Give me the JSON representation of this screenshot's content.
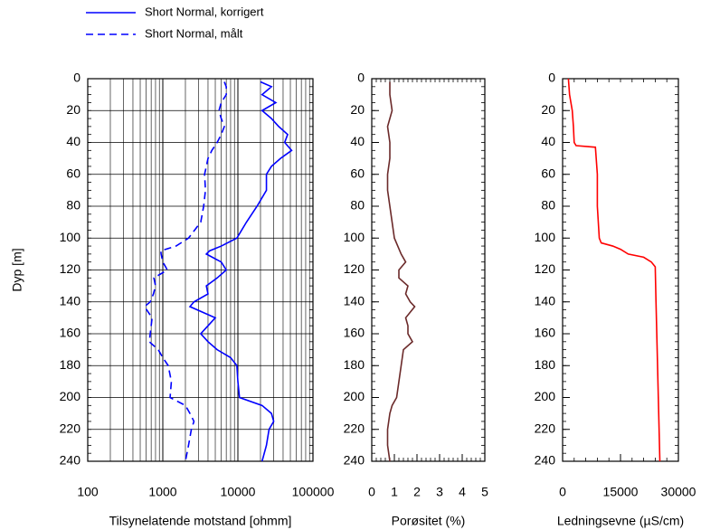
{
  "chart_data": [
    {
      "type": "line",
      "log_x": true,
      "grid": true,
      "legend": "top-left",
      "x_label": "Tilsynelatende motstand [ohmm]",
      "y_label": "Dyp [m]",
      "xlim": [
        100,
        100000
      ],
      "xticks": [
        100,
        1000,
        10000,
        100000
      ],
      "ylim": [
        0,
        240
      ],
      "yticks": [
        0,
        20,
        40,
        60,
        80,
        100,
        120,
        140,
        160,
        180,
        200,
        220,
        240
      ],
      "y": [
        2,
        5,
        10,
        15,
        20,
        25,
        30,
        35,
        40,
        45,
        50,
        55,
        60,
        70,
        80,
        90,
        100,
        105,
        108,
        110,
        115,
        120,
        125,
        130,
        135,
        140,
        143,
        150,
        155,
        160,
        165,
        170,
        175,
        180,
        190,
        200,
        205,
        210,
        215,
        220,
        230,
        240
      ],
      "series": [
        {
          "name": "Short Normal, korrigert",
          "color": "#0000ff",
          "dashed": false,
          "values": [
            20000,
            28000,
            21000,
            32000,
            21000,
            28000,
            35000,
            46000,
            42000,
            52000,
            37000,
            28000,
            24000,
            24000,
            18000,
            13000,
            9700,
            6000,
            4200,
            3800,
            6000,
            7000,
            5300,
            3800,
            4000,
            2600,
            2300,
            5000,
            4000,
            3200,
            4000,
            5300,
            8000,
            9700,
            10000,
            10500,
            21000,
            28000,
            30000,
            26000,
            24000,
            21000
          ]
        },
        {
          "name": "Short Normal, målt",
          "color": "#0000ff",
          "dashed": true,
          "values": [
            6600,
            7000,
            7000,
            6000,
            5600,
            6000,
            6600,
            6000,
            5300,
            4500,
            4000,
            3800,
            3600,
            3700,
            3500,
            3200,
            2200,
            1500,
            940,
            950,
            1000,
            1150,
            760,
            800,
            750,
            680,
            570,
            720,
            700,
            680,
            660,
            870,
            1000,
            1180,
            1300,
            1250,
            2000,
            2300,
            2600,
            2400,
            2200,
            2000
          ]
        }
      ]
    },
    {
      "type": "line",
      "log_x": false,
      "grid": false,
      "x_label": "Porøsitet (%)",
      "xlim": [
        0,
        5
      ],
      "xticks": [
        0,
        1,
        2,
        3,
        4,
        5
      ],
      "ylim": [
        0,
        240
      ],
      "yticks": [
        0,
        20,
        40,
        60,
        80,
        100,
        120,
        140,
        160,
        180,
        200,
        220,
        240
      ],
      "y": [
        2,
        10,
        20,
        30,
        40,
        50,
        60,
        70,
        80,
        90,
        100,
        110,
        115,
        120,
        125,
        130,
        135,
        140,
        143,
        150,
        155,
        160,
        165,
        170,
        180,
        190,
        200,
        205,
        210,
        220,
        230,
        240
      ],
      "series": [
        {
          "color": "#6b2a2a",
          "dashed": false,
          "values": [
            0.8,
            0.8,
            0.9,
            0.7,
            0.8,
            0.8,
            0.7,
            0.7,
            0.8,
            0.9,
            1.0,
            1.3,
            1.5,
            1.2,
            1.2,
            1.6,
            1.5,
            1.7,
            1.9,
            1.5,
            1.6,
            1.6,
            1.8,
            1.4,
            1.3,
            1.2,
            1.1,
            0.9,
            0.8,
            0.7,
            0.7,
            0.8
          ]
        }
      ]
    },
    {
      "type": "line",
      "log_x": false,
      "grid": false,
      "x_label": "Ledningsevne  (µS/cm)",
      "xlim": [
        0,
        30000
      ],
      "xticks": [
        0,
        15000,
        30000
      ],
      "ylim": [
        0,
        240
      ],
      "yticks": [
        0,
        20,
        40,
        60,
        80,
        100,
        120,
        140,
        160,
        180,
        200,
        220,
        240
      ],
      "y": [
        0,
        10,
        20,
        30,
        40,
        42,
        43,
        60,
        80,
        100,
        103,
        105,
        107,
        110,
        112,
        115,
        118,
        140,
        160,
        180,
        200,
        220,
        240
      ],
      "series": [
        {
          "color": "#ff0000",
          "dashed": false,
          "values": [
            1500,
            1800,
            2500,
            2800,
            3000,
            3500,
            8500,
            9000,
            9000,
            9500,
            10000,
            13000,
            15000,
            17000,
            21000,
            23000,
            24000,
            24200,
            24400,
            24600,
            24800,
            25000,
            25200
          ]
        }
      ]
    }
  ]
}
